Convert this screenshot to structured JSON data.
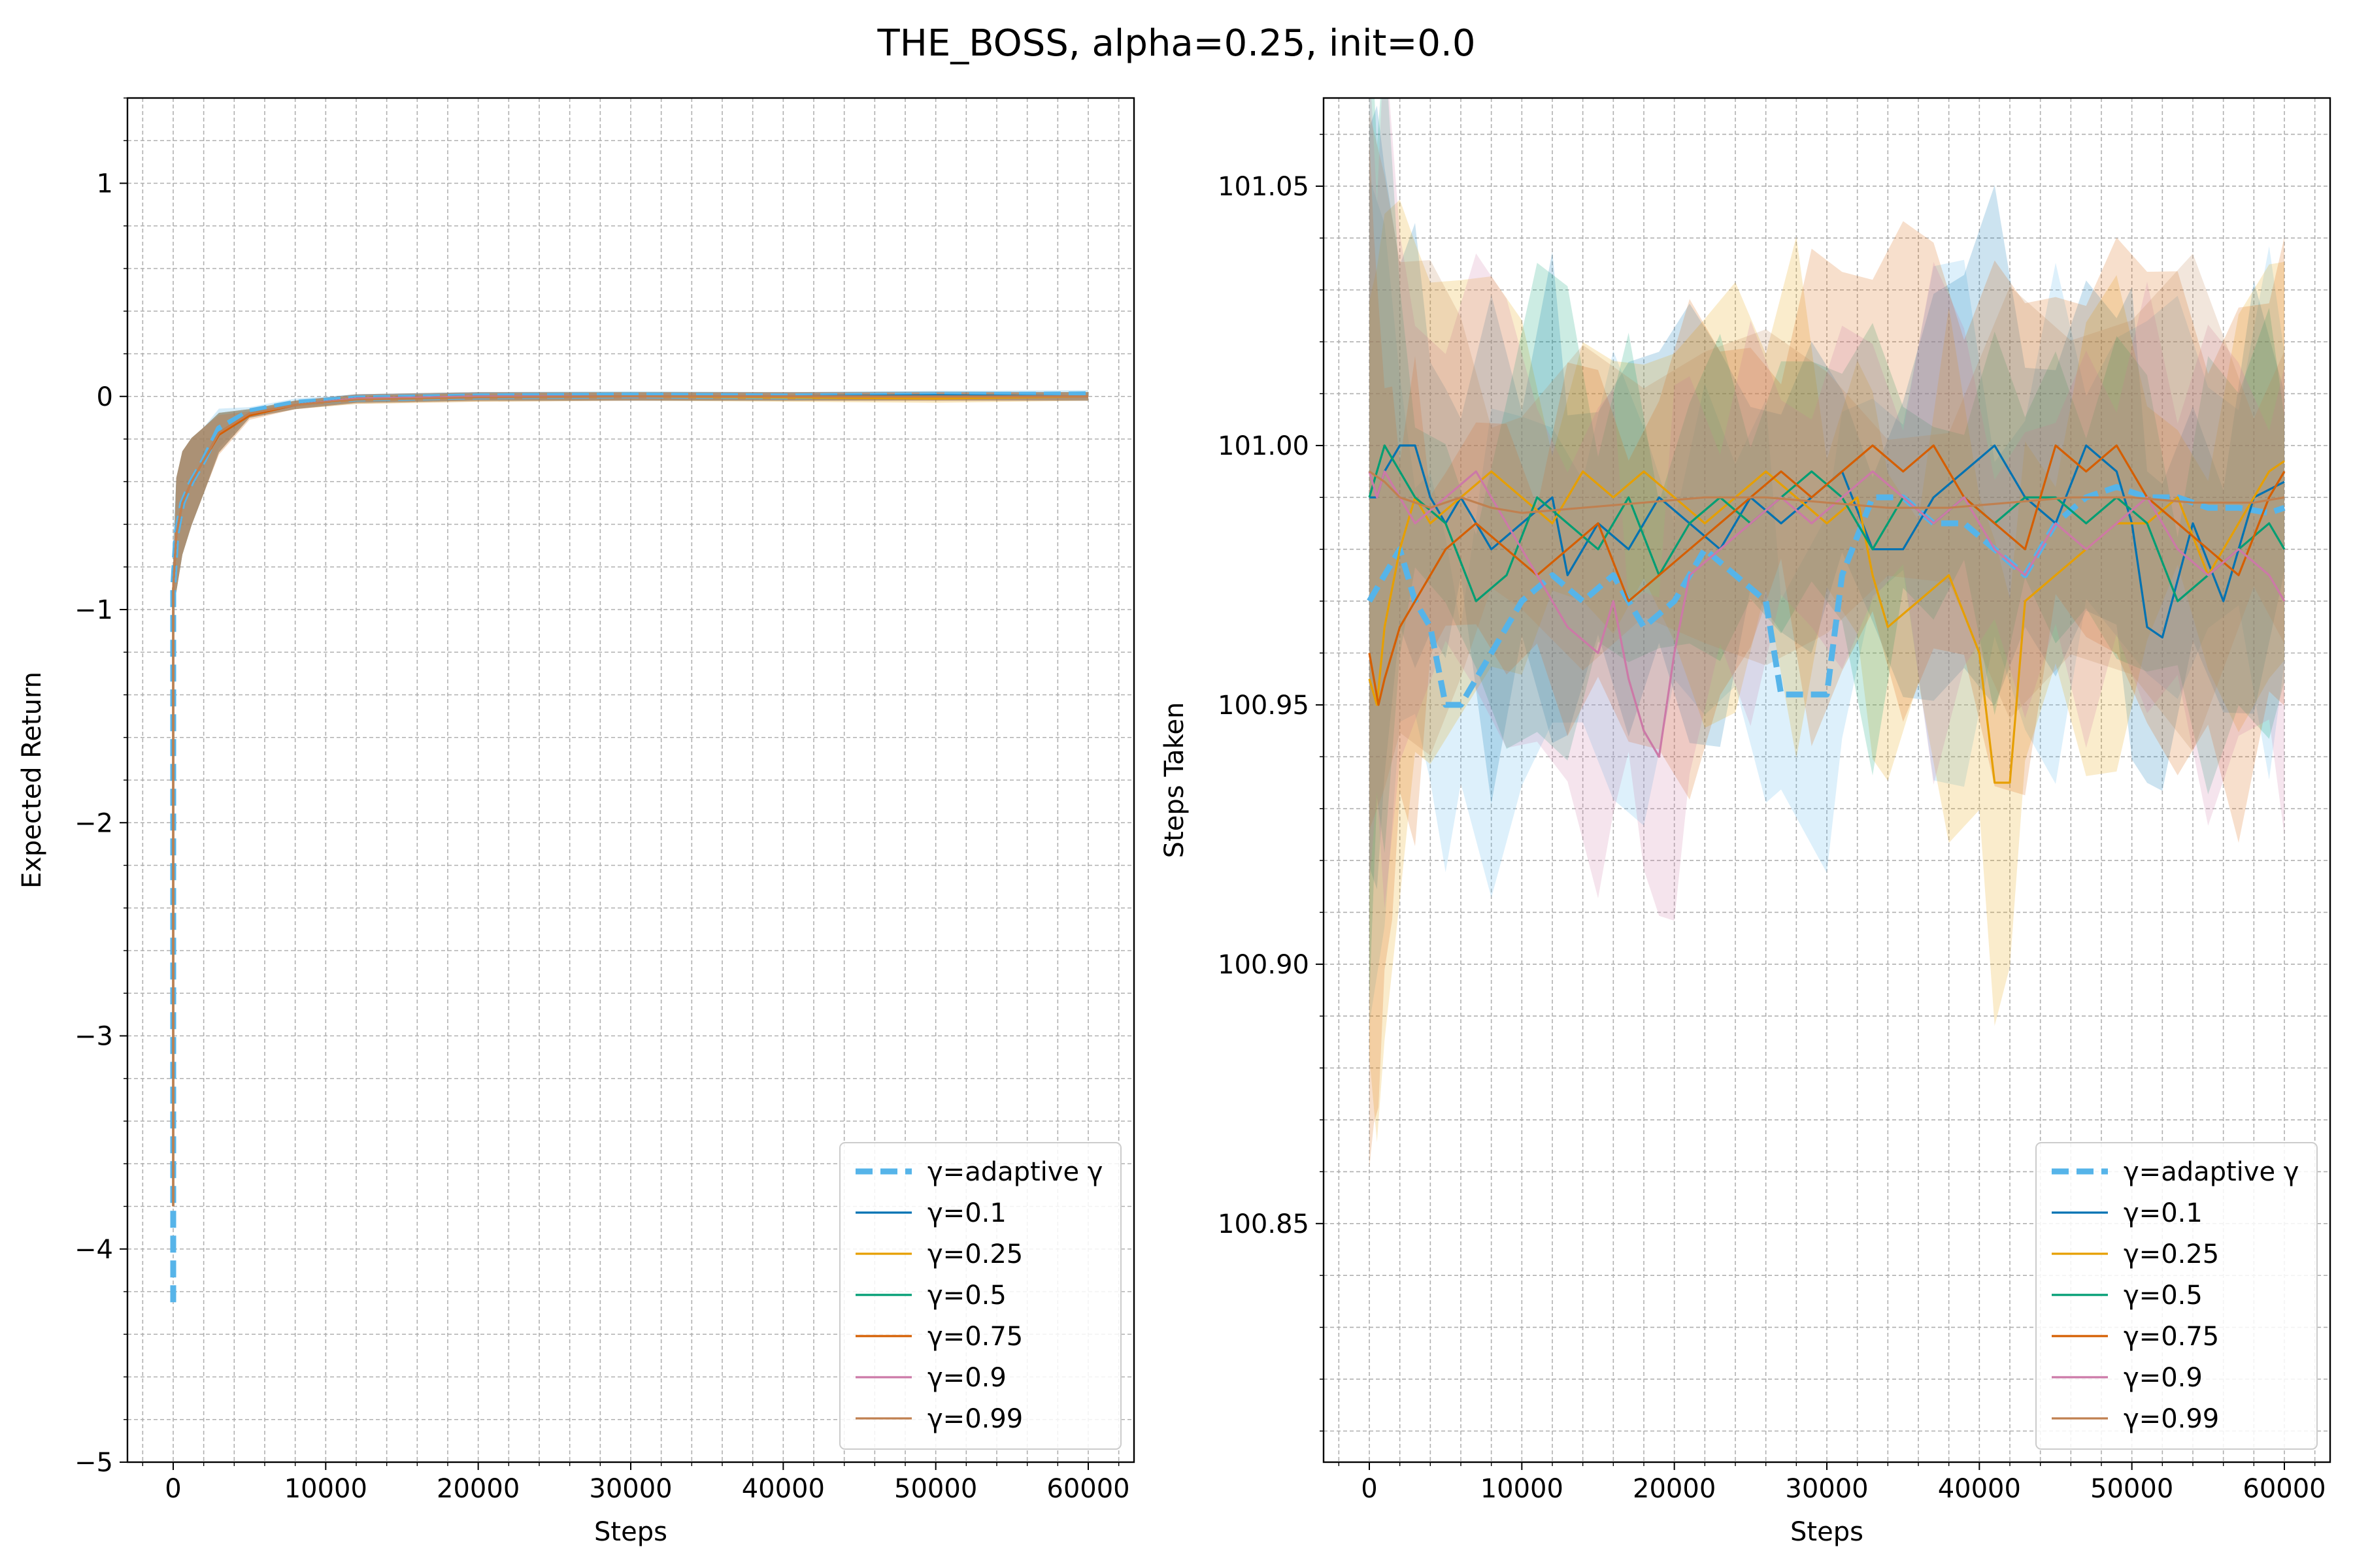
{
  "figure": {
    "title": "THE_BOSS, alpha=0.25, init=0.0"
  },
  "chart_data": [
    {
      "type": "line",
      "xlabel": "Steps",
      "ylabel": "Expected Return",
      "xlim": [
        -3000,
        63000
      ],
      "ylim": [
        -5,
        1.4
      ],
      "xticks": [
        0,
        10000,
        20000,
        30000,
        40000,
        50000,
        60000
      ],
      "xtick_labels": [
        "0",
        "10000",
        "20000",
        "30000",
        "40000",
        "50000",
        "60000"
      ],
      "yticks": [
        -5,
        -4,
        -3,
        -2,
        -1,
        0,
        1
      ],
      "ytick_labels": [
        "−5",
        "−4",
        "−3",
        "−2",
        "−1",
        "0",
        "1"
      ],
      "grid": true,
      "legend_position": "lower-right",
      "series": [
        {
          "name": "γ=adaptive γ",
          "color": "#56b4e9",
          "dashed": true,
          "x": [
            0,
            0,
            0,
            200,
            600,
            1200,
            2000,
            3000,
            5000,
            8000,
            12000,
            20000,
            30000,
            40000,
            50000,
            60000
          ],
          "y": [
            -4.25,
            -3.0,
            -0.9,
            -0.65,
            -0.5,
            -0.4,
            -0.3,
            -0.15,
            -0.07,
            -0.03,
            -0.01,
            0.0,
            0.005,
            0.0,
            0.005,
            0.01
          ]
        },
        {
          "name": "γ=0.1",
          "color": "#0072b2",
          "dashed": false,
          "x": [
            0,
            0,
            200,
            600,
            1200,
            2000,
            3000,
            5000,
            8000,
            12000,
            20000,
            30000,
            40000,
            50000,
            60000
          ],
          "y": [
            -3.8,
            -0.9,
            -0.65,
            -0.5,
            -0.4,
            -0.3,
            -0.17,
            -0.08,
            -0.04,
            -0.01,
            0.0,
            0.0,
            0.0,
            0.005,
            0.0
          ]
        },
        {
          "name": "γ=0.25",
          "color": "#e69f00",
          "dashed": false,
          "x": [
            0,
            0,
            200,
            600,
            1200,
            2000,
            3000,
            5000,
            8000,
            12000,
            20000,
            30000,
            40000,
            50000,
            60000
          ],
          "y": [
            -3.8,
            -0.9,
            -0.65,
            -0.5,
            -0.4,
            -0.3,
            -0.17,
            -0.08,
            -0.04,
            -0.015,
            -0.005,
            0.0,
            -0.005,
            -0.01,
            0.0
          ]
        },
        {
          "name": "γ=0.5",
          "color": "#009e73",
          "dashed": false,
          "x": [
            0,
            0,
            200,
            600,
            1200,
            2000,
            3000,
            5000,
            8000,
            12000,
            20000,
            30000,
            40000,
            50000,
            60000
          ],
          "y": [
            -3.8,
            -0.9,
            -0.65,
            -0.5,
            -0.4,
            -0.3,
            -0.17,
            -0.08,
            -0.04,
            -0.01,
            0.0,
            0.0,
            0.0,
            0.0,
            0.0
          ]
        },
        {
          "name": "γ=0.75",
          "color": "#d55e00",
          "dashed": false,
          "x": [
            0,
            0,
            200,
            600,
            1200,
            2000,
            3000,
            5000,
            8000,
            12000,
            20000,
            30000,
            40000,
            50000,
            60000
          ],
          "y": [
            -3.8,
            -0.9,
            -0.65,
            -0.5,
            -0.4,
            -0.3,
            -0.18,
            -0.09,
            -0.04,
            -0.01,
            0.0,
            0.0,
            0.0,
            0.0,
            0.0
          ]
        },
        {
          "name": "γ=0.9",
          "color": "#cc79a7",
          "dashed": false,
          "x": [
            0,
            0,
            200,
            600,
            1200,
            2000,
            3000,
            5000,
            8000,
            12000,
            20000,
            30000,
            40000,
            50000,
            60000
          ],
          "y": [
            -3.8,
            -0.9,
            -0.65,
            -0.5,
            -0.4,
            -0.3,
            -0.17,
            -0.08,
            -0.04,
            -0.01,
            0.0,
            0.0,
            0.0,
            0.0,
            0.0
          ]
        },
        {
          "name": "γ=0.99",
          "color": "#c08050",
          "dashed": false,
          "x": [
            0,
            0,
            200,
            600,
            1200,
            2000,
            3000,
            5000,
            8000,
            12000,
            20000,
            30000,
            40000,
            50000,
            60000
          ],
          "y": [
            -3.8,
            -0.9,
            -0.65,
            -0.5,
            -0.4,
            -0.3,
            -0.17,
            -0.08,
            -0.04,
            -0.015,
            -0.005,
            0.0,
            0.0,
            0.0,
            0.0
          ]
        }
      ]
    },
    {
      "type": "line",
      "xlabel": "Steps",
      "ylabel": "Steps Taken",
      "xlim": [
        -3000,
        63000
      ],
      "ylim": [
        100.804,
        101.067
      ],
      "xticks": [
        0,
        10000,
        20000,
        30000,
        40000,
        50000,
        60000
      ],
      "xtick_labels": [
        "0",
        "10000",
        "20000",
        "30000",
        "40000",
        "50000",
        "60000"
      ],
      "yticks": [
        100.85,
        100.9,
        100.95,
        101.0,
        101.05
      ],
      "ytick_labels": [
        "100.85",
        "100.90",
        "100.95",
        "101.00",
        "101.05"
      ],
      "grid": true,
      "legend_position": "lower-right",
      "series": [
        {
          "name": "γ=adaptive γ",
          "color": "#56b4e9",
          "dashed": true,
          "x": [
            0,
            1000,
            2000,
            3000,
            4000,
            5000,
            6000,
            8000,
            10000,
            12000,
            14000,
            16000,
            18000,
            20000,
            22000,
            24000,
            26000,
            27000,
            30000,
            31000,
            33000,
            35000,
            37000,
            39000,
            41000,
            43000,
            45000,
            47000,
            49000,
            51000,
            53000,
            55000,
            57000,
            59000,
            60000
          ],
          "y": [
            100.97,
            100.975,
            100.98,
            100.97,
            100.965,
            100.95,
            100.95,
            100.96,
            100.97,
            100.975,
            100.97,
            100.975,
            100.965,
            100.97,
            100.98,
            100.975,
            100.97,
            100.952,
            100.952,
            100.975,
            100.99,
            100.99,
            100.985,
            100.985,
            100.98,
            100.975,
            100.985,
            100.99,
            100.992,
            100.99,
            100.99,
            100.988,
            100.988,
            100.987,
            100.988
          ]
        },
        {
          "name": "γ=0.1",
          "color": "#0072b2",
          "dashed": false,
          "x": [
            0,
            500,
            1000,
            2000,
            3000,
            4000,
            5000,
            6000,
            8000,
            10000,
            12000,
            13000,
            15000,
            17000,
            19000,
            21000,
            23000,
            25000,
            27000,
            29000,
            31000,
            33000,
            35000,
            37000,
            39000,
            41000,
            43000,
            45000,
            47000,
            49000,
            50000,
            51000,
            52000,
            54000,
            56000,
            58000,
            60000
          ],
          "y": [
            100.99,
            100.99,
            100.995,
            101.0,
            101.0,
            100.99,
            100.985,
            100.99,
            100.98,
            100.985,
            100.99,
            100.975,
            100.985,
            100.98,
            100.99,
            100.985,
            100.98,
            100.99,
            100.985,
            100.99,
            100.995,
            100.98,
            100.98,
            100.99,
            100.995,
            101.0,
            100.99,
            100.985,
            101.0,
            100.995,
            100.985,
            100.965,
            100.963,
            100.985,
            100.97,
            100.99,
            100.993
          ]
        },
        {
          "name": "γ=0.25",
          "color": "#e69f00",
          "dashed": false,
          "x": [
            0,
            500,
            1000,
            2000,
            3000,
            4000,
            6000,
            8000,
            10000,
            12000,
            14000,
            16000,
            18000,
            20000,
            22000,
            24000,
            26000,
            28000,
            30000,
            32000,
            33000,
            34000,
            36000,
            38000,
            40000,
            41000,
            42000,
            43000,
            45000,
            47000,
            49000,
            51000,
            53000,
            55000,
            57000,
            59000,
            60000
          ],
          "y": [
            100.955,
            100.95,
            100.965,
            100.98,
            100.99,
            100.985,
            100.99,
            100.995,
            100.99,
            100.985,
            100.995,
            100.99,
            100.995,
            100.99,
            100.985,
            100.99,
            100.995,
            100.99,
            100.985,
            100.99,
            100.975,
            100.965,
            100.97,
            100.975,
            100.96,
            100.935,
            100.935,
            100.97,
            100.975,
            100.98,
            100.985,
            100.985,
            100.99,
            100.975,
            100.985,
            100.995,
            100.997
          ]
        },
        {
          "name": "γ=0.5",
          "color": "#009e73",
          "dashed": false,
          "x": [
            0,
            500,
            1000,
            2000,
            3000,
            5000,
            7000,
            9000,
            11000,
            13000,
            15000,
            17000,
            19000,
            21000,
            23000,
            25000,
            27000,
            29000,
            31000,
            33000,
            35000,
            37000,
            39000,
            41000,
            43000,
            45000,
            47000,
            49000,
            51000,
            53000,
            55000,
            57000,
            59000,
            60000
          ],
          "y": [
            100.99,
            100.995,
            101.0,
            100.995,
            100.99,
            100.985,
            100.97,
            100.975,
            100.99,
            100.985,
            100.98,
            100.99,
            100.975,
            100.985,
            100.99,
            100.985,
            100.99,
            100.995,
            100.99,
            100.98,
            100.99,
            100.985,
            100.99,
            100.985,
            100.99,
            100.99,
            100.985,
            100.99,
            100.985,
            100.97,
            100.975,
            100.98,
            100.985,
            100.98
          ]
        },
        {
          "name": "γ=0.75",
          "color": "#d55e00",
          "dashed": false,
          "x": [
            0,
            300,
            600,
            1000,
            1500,
            2000,
            3000,
            4000,
            5000,
            7000,
            9000,
            11000,
            13000,
            15000,
            17000,
            19000,
            21000,
            23000,
            25000,
            27000,
            29000,
            31000,
            33000,
            35000,
            37000,
            39000,
            41000,
            43000,
            45000,
            47000,
            49000,
            51000,
            53000,
            55000,
            57000,
            59000,
            60000
          ],
          "y": [
            100.96,
            100.955,
            100.95,
            100.955,
            100.96,
            100.965,
            100.97,
            100.975,
            100.98,
            100.985,
            100.98,
            100.975,
            100.98,
            100.985,
            100.97,
            100.975,
            100.98,
            100.985,
            100.99,
            100.995,
            100.99,
            100.995,
            101.0,
            100.995,
            101.0,
            100.99,
            100.985,
            100.98,
            101.0,
            100.995,
            101.0,
            100.99,
            100.985,
            100.98,
            100.975,
            100.99,
            100.995
          ]
        },
        {
          "name": "γ=0.9",
          "color": "#cc79a7",
          "dashed": false,
          "x": [
            0,
            500,
            1000,
            2000,
            3000,
            5000,
            7000,
            9000,
            11000,
            13000,
            15000,
            16000,
            17000,
            18000,
            19000,
            20000,
            21000,
            23000,
            25000,
            27000,
            29000,
            31000,
            33000,
            35000,
            37000,
            39000,
            41000,
            43000,
            45000,
            47000,
            49000,
            51000,
            53000,
            55000,
            57000,
            59000,
            60000
          ],
          "y": [
            100.995,
            100.99,
            100.995,
            100.99,
            100.985,
            100.99,
            100.995,
            100.985,
            100.975,
            100.965,
            100.96,
            100.97,
            100.955,
            100.945,
            100.94,
            100.96,
            100.975,
            100.98,
            100.985,
            100.99,
            100.985,
            100.99,
            100.995,
            100.99,
            100.985,
            100.99,
            100.98,
            100.975,
            100.985,
            100.98,
            100.985,
            100.99,
            100.98,
            100.975,
            100.98,
            100.975,
            100.97
          ]
        },
        {
          "name": "γ=0.99",
          "color": "#c08050",
          "dashed": false,
          "x": [
            0,
            1000,
            2000,
            4000,
            6000,
            8000,
            10000,
            14000,
            18000,
            22000,
            26000,
            30000,
            34000,
            38000,
            42000,
            46000,
            50000,
            54000,
            58000,
            60000
          ],
          "y": [
            100.995,
            100.993,
            100.99,
            100.988,
            100.99,
            100.988,
            100.987,
            100.988,
            100.989,
            100.99,
            100.99,
            100.989,
            100.988,
            100.988,
            100.989,
            100.99,
            100.99,
            100.989,
            100.989,
            100.99
          ]
        }
      ]
    }
  ]
}
